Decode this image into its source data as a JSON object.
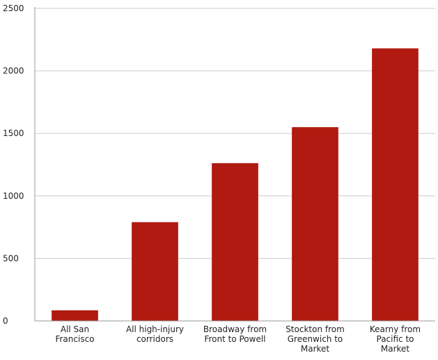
{
  "chart_data": {
    "type": "bar",
    "title": "",
    "xlabel": "",
    "ylabel": "",
    "categories": [
      [
        "All San",
        "Francisco"
      ],
      [
        "All high-injury",
        "corridors"
      ],
      [
        "Broadway from",
        "Front to Powell"
      ],
      [
        "Stockton from",
        "Greenwich to",
        "Market"
      ],
      [
        "Kearny from",
        "Pacific to",
        "Market"
      ]
    ],
    "values": [
      85,
      790,
      1262,
      1550,
      2180
    ],
    "ylim": [
      0,
      2500
    ],
    "yticks": [
      0,
      500,
      1000,
      1500,
      2000,
      2500
    ],
    "grid": true,
    "legend": "none",
    "colors": {
      "bar": "#b01a10",
      "grid": "#cccccc",
      "axis": "#999999"
    }
  }
}
